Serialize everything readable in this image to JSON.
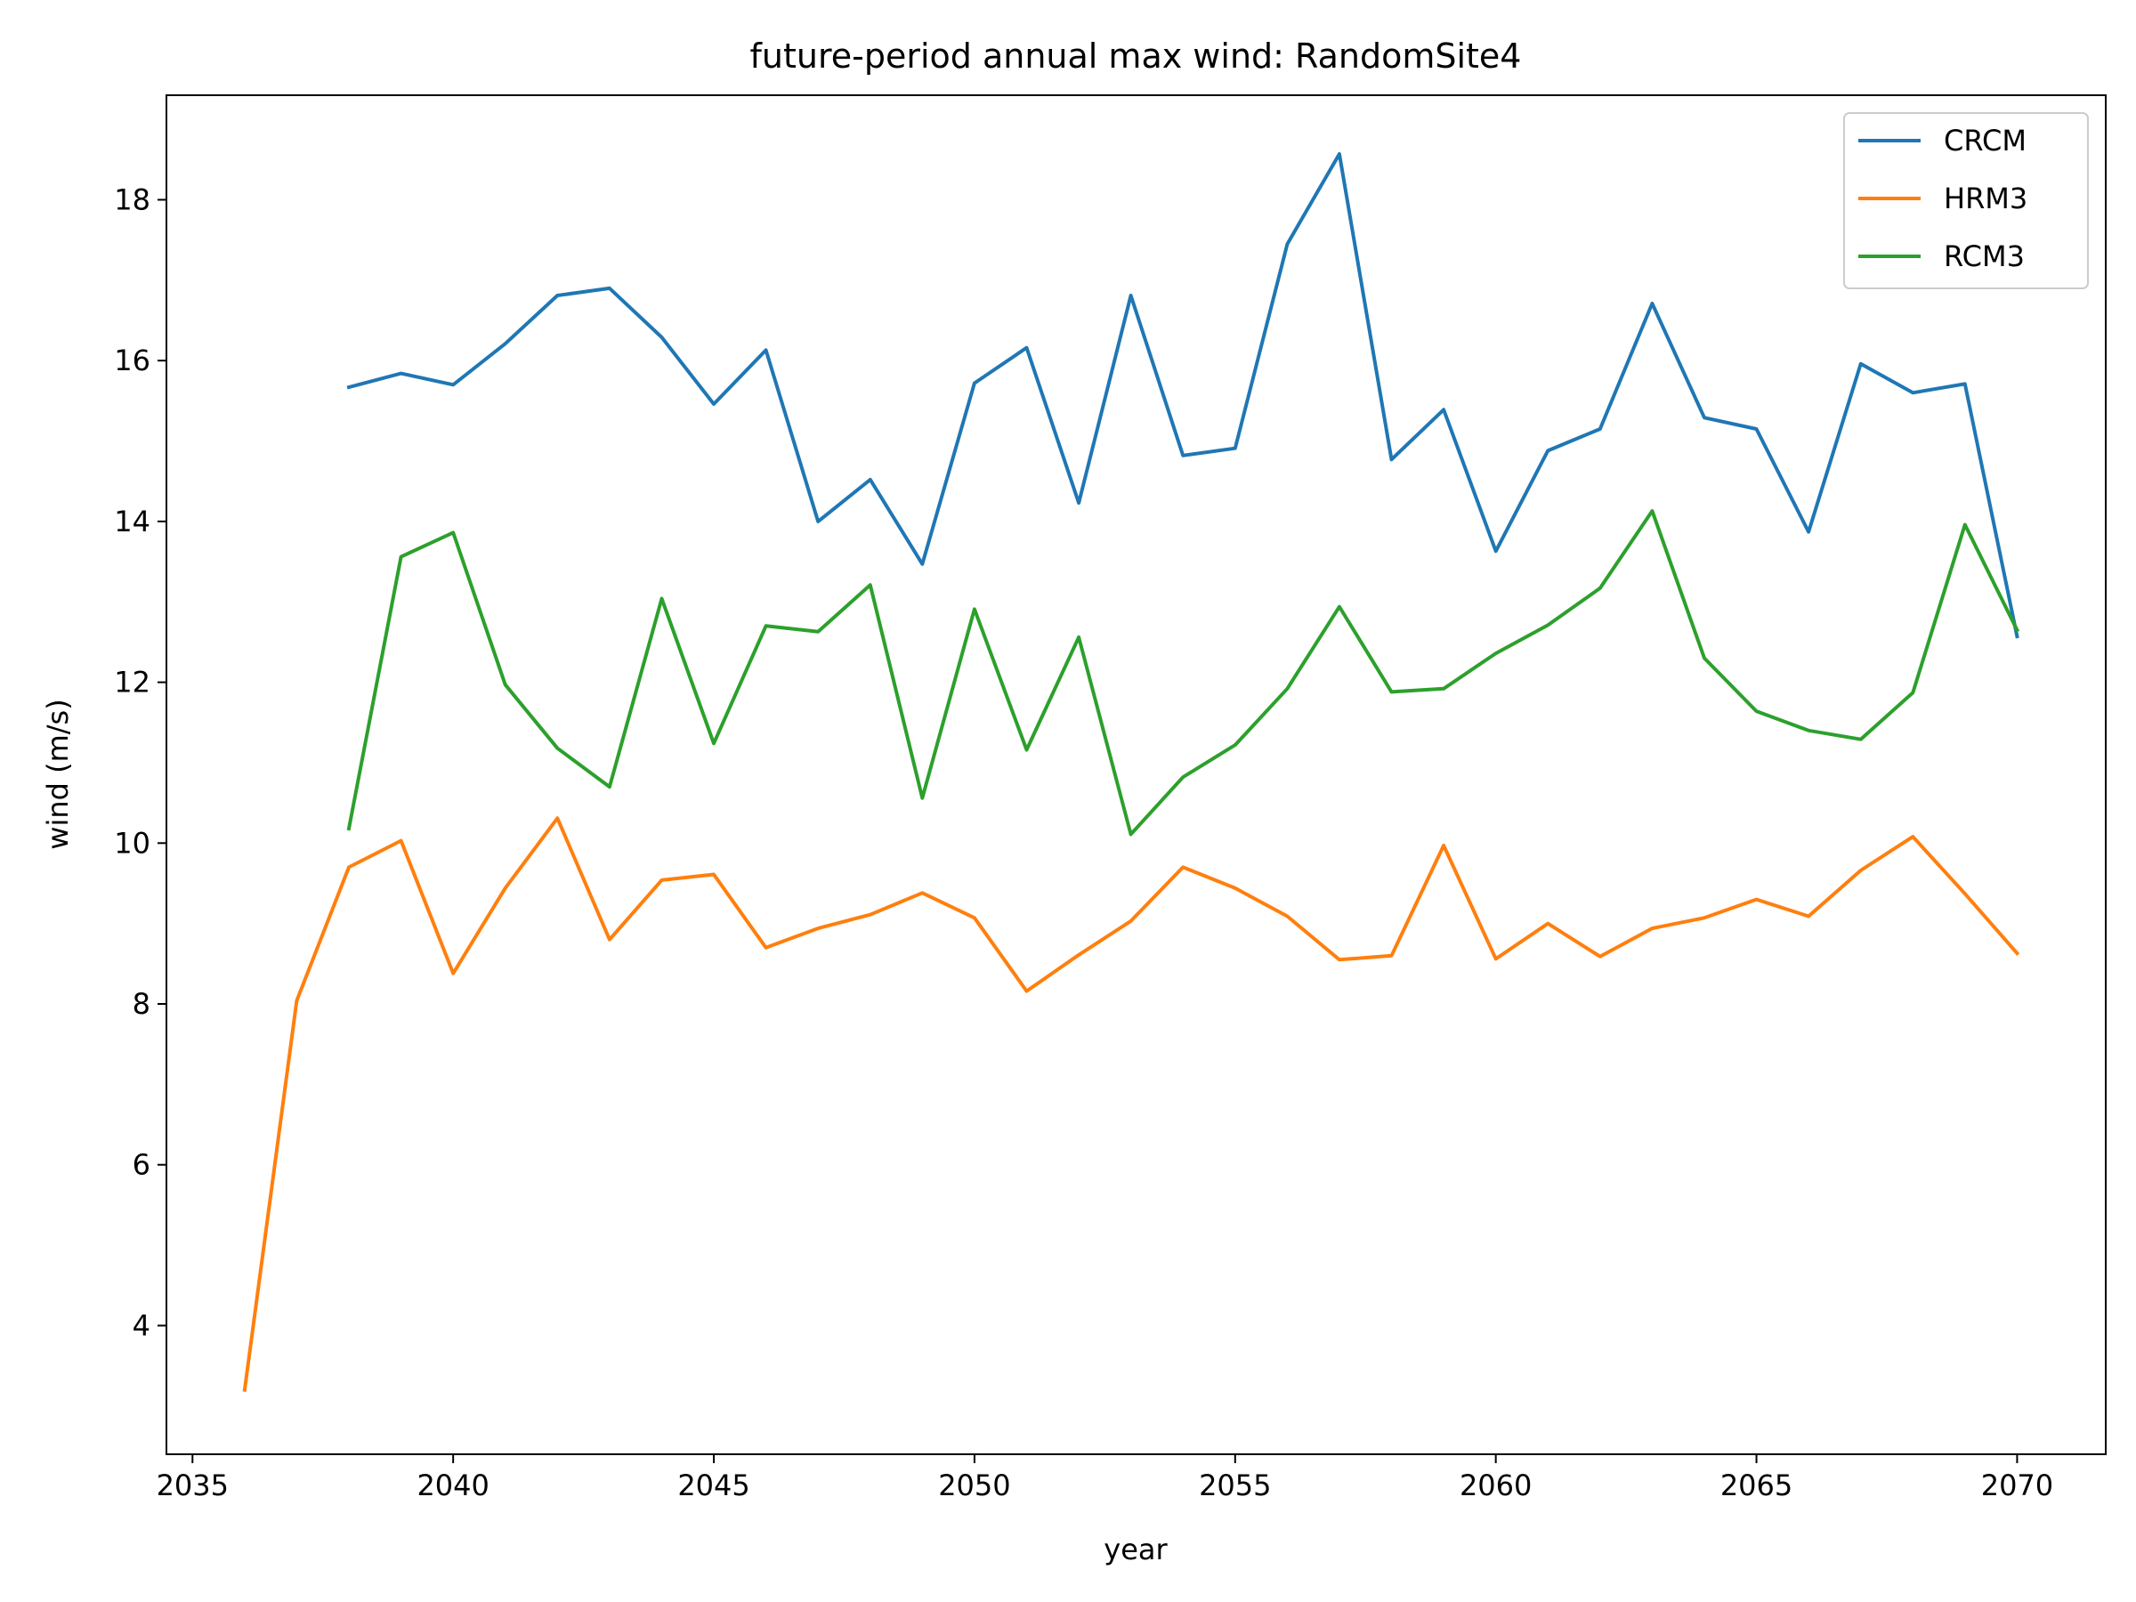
{
  "chart_data": {
    "type": "line",
    "title": "future-period annual max wind: RandomSite4",
    "xlabel": "year",
    "ylabel": "wind (m/s)",
    "xlim": [
      2034.5,
      2071.7
    ],
    "ylim": [
      2.4,
      19.3
    ],
    "xticks": [
      2035,
      2040,
      2045,
      2050,
      2055,
      2060,
      2065,
      2070
    ],
    "yticks": [
      4,
      6,
      8,
      10,
      12,
      14,
      16,
      18
    ],
    "grid": false,
    "legend_position": "upper right",
    "series": [
      {
        "name": "CRCM",
        "color": "#1f77b4",
        "x": [
          2038,
          2039,
          2040,
          2041,
          2042,
          2043,
          2044,
          2045,
          2046,
          2047,
          2048,
          2049,
          2050,
          2051,
          2052,
          2053,
          2054,
          2055,
          2056,
          2057,
          2058,
          2059,
          2060,
          2061,
          2062,
          2063,
          2064,
          2065,
          2066,
          2067,
          2068,
          2069,
          2070
        ],
        "y": [
          15.67,
          15.84,
          15.7,
          16.21,
          16.81,
          16.9,
          16.29,
          15.46,
          16.13,
          14.0,
          14.52,
          13.47,
          15.72,
          16.16,
          14.23,
          16.81,
          14.82,
          14.91,
          17.45,
          18.57,
          14.77,
          15.39,
          13.63,
          14.88,
          15.15,
          16.71,
          15.29,
          15.15,
          13.87,
          15.96,
          15.6,
          15.71,
          12.57
        ]
      },
      {
        "name": "HRM3",
        "color": "#ff7f0e",
        "x": [
          2036,
          2037,
          2038,
          2039,
          2040,
          2041,
          2042,
          2043,
          2044,
          2045,
          2046,
          2047,
          2048,
          2049,
          2050,
          2051,
          2052,
          2053,
          2054,
          2055,
          2056,
          2057,
          2058,
          2059,
          2060,
          2061,
          2062,
          2063,
          2064,
          2065,
          2066,
          2067,
          2068,
          2069,
          2070
        ],
        "y": [
          3.2,
          8.04,
          9.7,
          10.03,
          8.38,
          9.44,
          10.31,
          8.8,
          9.54,
          9.61,
          8.7,
          8.94,
          9.11,
          9.38,
          9.07,
          8.16,
          8.61,
          9.03,
          9.7,
          9.44,
          9.09,
          8.55,
          8.6,
          9.97,
          8.56,
          9.0,
          8.59,
          8.94,
          9.07,
          9.3,
          9.09,
          9.66,
          10.08,
          9.37,
          8.63
        ]
      },
      {
        "name": "RCM3",
        "color": "#2ca02c",
        "x": [
          2038,
          2039,
          2040,
          2041,
          2042,
          2043,
          2044,
          2045,
          2046,
          2047,
          2048,
          2049,
          2050,
          2051,
          2052,
          2053,
          2054,
          2055,
          2056,
          2057,
          2058,
          2059,
          2060,
          2061,
          2062,
          2063,
          2064,
          2065,
          2066,
          2067,
          2068,
          2069,
          2070
        ],
        "y": [
          10.18,
          13.56,
          13.86,
          11.97,
          11.18,
          10.7,
          13.04,
          11.24,
          12.7,
          12.63,
          13.21,
          10.56,
          12.91,
          11.16,
          12.56,
          10.11,
          10.82,
          11.22,
          11.92,
          12.94,
          11.88,
          11.92,
          12.36,
          12.71,
          13.17,
          14.13,
          12.3,
          11.64,
          11.4,
          11.29,
          11.87,
          13.96,
          12.65
        ]
      }
    ]
  }
}
